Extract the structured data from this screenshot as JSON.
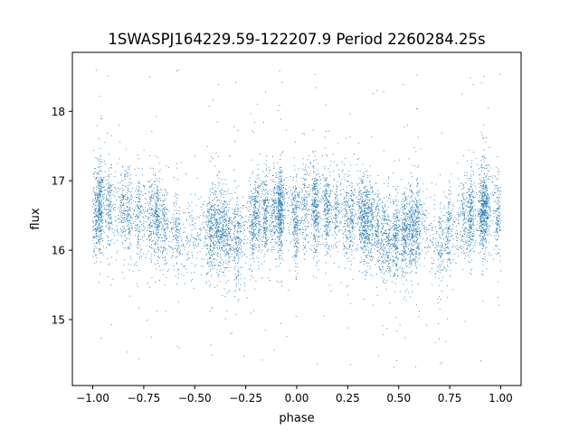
{
  "chart_data": {
    "type": "scatter",
    "title": "1SWASPJ164229.59-122207.9 Period 2260284.25s",
    "xlabel": "phase",
    "ylabel": "flux",
    "xlim": [
      -1.1,
      1.1
    ],
    "ylim": [
      14.05,
      18.85
    ],
    "xticks": [
      -1.0,
      -0.75,
      -0.5,
      -0.25,
      0.0,
      0.25,
      0.5,
      0.75,
      1.0
    ],
    "xtick_labels": [
      "−1.00",
      "−0.75",
      "−0.50",
      "−0.25",
      "0.00",
      "0.25",
      "0.50",
      "0.75",
      "1.00"
    ],
    "yticks": [
      15,
      16,
      17,
      18
    ],
    "ytick_labels": [
      "15",
      "16",
      "17",
      "18"
    ],
    "grid": false,
    "point_color": "#1f77b4",
    "series": [
      {
        "phase_profile": {
          "x": [
            -1.0,
            -0.95,
            -0.9,
            -0.85,
            -0.8,
            -0.75,
            -0.7,
            -0.65,
            -0.6,
            -0.55,
            -0.5,
            -0.45,
            -0.4,
            -0.35,
            -0.3,
            -0.25,
            -0.2,
            -0.15,
            -0.1,
            -0.05,
            0.0,
            0.05,
            0.1,
            0.15,
            0.2,
            0.25,
            0.3,
            0.35,
            0.4,
            0.45,
            0.5,
            0.55,
            0.6,
            0.65,
            0.7,
            0.75,
            0.8,
            0.85,
            0.9,
            0.95,
            1.0
          ],
          "y": [
            16.45,
            16.7,
            16.55,
            16.6,
            16.55,
            16.45,
            16.5,
            16.4,
            16.3,
            16.15,
            16.2,
            16.3,
            16.35,
            16.25,
            16.1,
            16.3,
            16.45,
            16.5,
            16.55,
            16.6,
            16.45,
            16.7,
            16.55,
            16.6,
            16.55,
            16.45,
            16.5,
            16.4,
            16.3,
            16.15,
            16.2,
            16.3,
            16.35,
            16.25,
            16.1,
            16.3,
            16.45,
            16.5,
            16.55,
            16.6,
            16.45
          ]
        },
        "spread": 0.32,
        "n_points": 9000
      }
    ]
  }
}
